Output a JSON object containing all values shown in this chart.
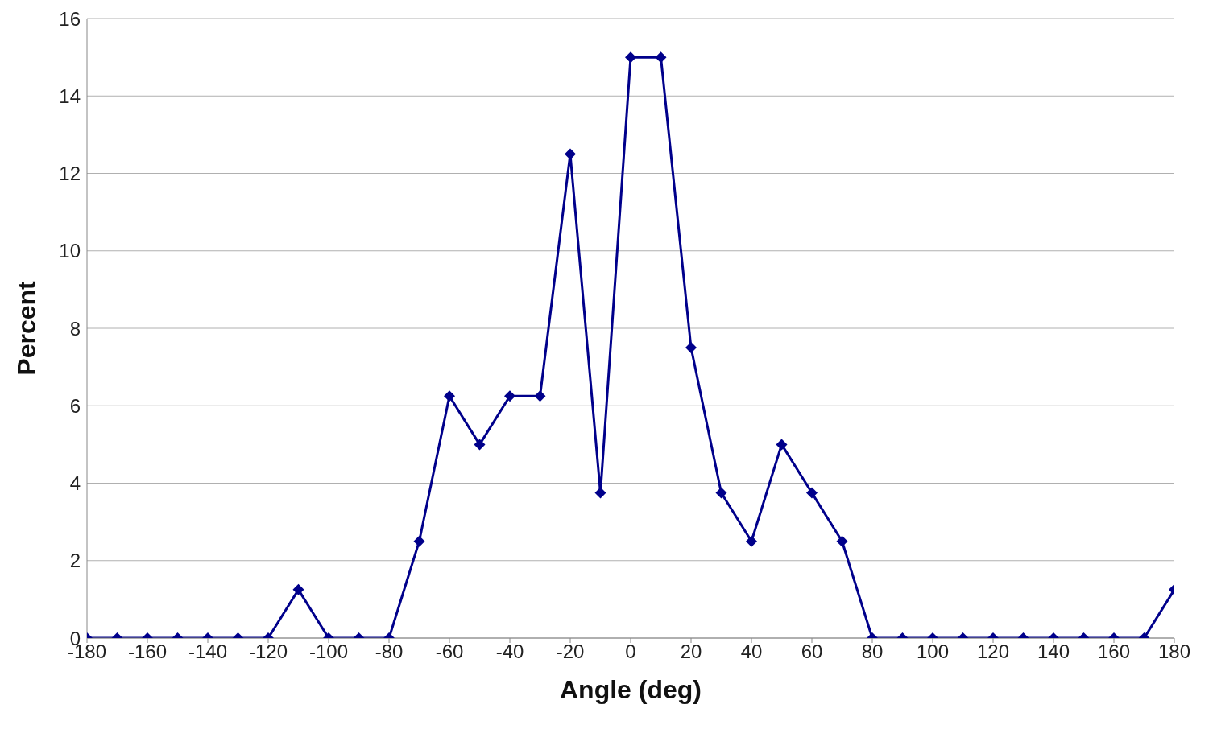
{
  "chart_data": {
    "type": "line",
    "xlabel": "Angle (deg)",
    "ylabel": "Percent",
    "x": [
      -180,
      -170,
      -160,
      -150,
      -140,
      -130,
      -120,
      -110,
      -100,
      -90,
      -80,
      -70,
      -60,
      -50,
      -40,
      -30,
      -20,
      -10,
      0,
      10,
      20,
      30,
      40,
      50,
      60,
      70,
      80,
      90,
      100,
      110,
      120,
      130,
      140,
      150,
      160,
      170,
      180
    ],
    "series": [
      {
        "color": "#00008b",
        "values": [
          0,
          0,
          0,
          0,
          0,
          0,
          0,
          1.25,
          0,
          0,
          0,
          2.5,
          6.25,
          5,
          6.25,
          6.25,
          12.5,
          3.75,
          15,
          15,
          7.5,
          3.75,
          2.5,
          5,
          3.75,
          2.5,
          0,
          0,
          0,
          0,
          0,
          0,
          0,
          0,
          0,
          0,
          1.25
        ]
      }
    ],
    "xlim": [
      -180,
      180
    ],
    "xticks": [
      -180,
      -160,
      -140,
      -120,
      -100,
      -80,
      -60,
      -40,
      -20,
      0,
      20,
      40,
      60,
      80,
      100,
      120,
      140,
      160,
      180
    ],
    "ylim": [
      0,
      16
    ],
    "yticks": [
      0,
      2,
      4,
      6,
      8,
      10,
      12,
      14,
      16
    ],
    "grid": "y",
    "legend": false,
    "marker": "diamond",
    "line_style": "solid"
  }
}
